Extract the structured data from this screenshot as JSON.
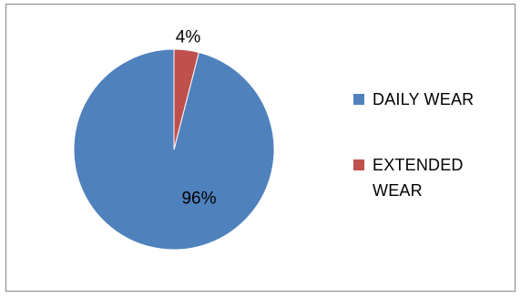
{
  "chart_data": {
    "type": "pie",
    "categories": [
      "DAILY WEAR",
      "EXTENDED WEAR"
    ],
    "values": [
      96,
      4
    ],
    "data_labels": [
      "96%",
      "4%"
    ],
    "colors": [
      "#4F81BD",
      "#C0504D"
    ],
    "legend_position": "right",
    "title": ""
  },
  "legend": {
    "items": [
      {
        "label": "DAILY WEAR",
        "color": "#4F81BD"
      },
      {
        "label": "EXTENDED WEAR",
        "color": "#C0504D"
      }
    ]
  }
}
